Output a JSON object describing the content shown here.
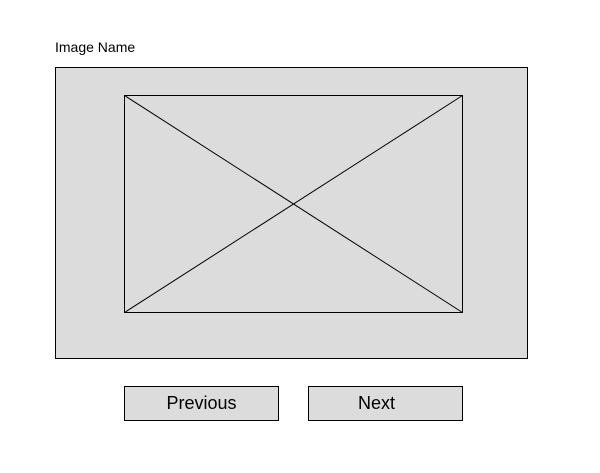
{
  "viewer": {
    "image_name": "Image Name",
    "image_placeholder_icon": "image-placeholder-icon",
    "background_color": "#dcdcdc",
    "border_color": "#000000"
  },
  "navigation": {
    "previous_label": "Previous",
    "next_label": "Next"
  }
}
